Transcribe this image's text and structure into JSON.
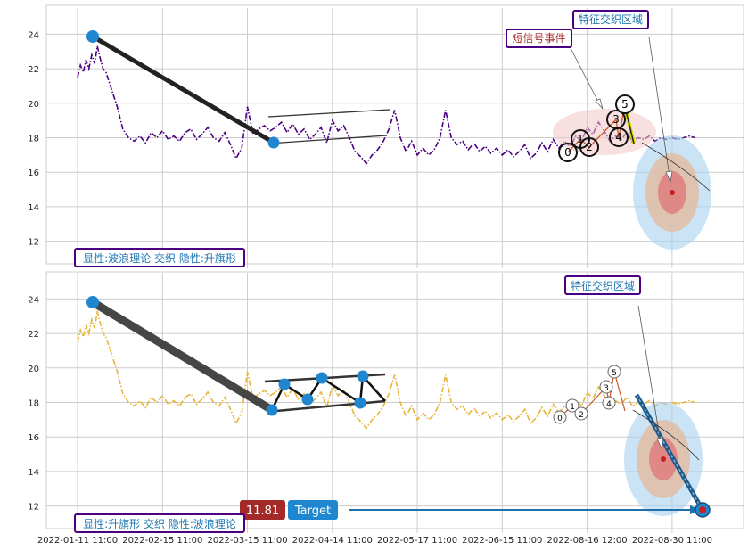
{
  "chart_data": [
    {
      "type": "line",
      "panel": "top",
      "ylim": [
        11,
        25
      ],
      "yticks": [
        12,
        14,
        16,
        18,
        20,
        22,
        24
      ],
      "series": [
        {
          "color": "#4b0082",
          "style": "dash-dot",
          "x": [
            0,
            1,
            2,
            3,
            4,
            5,
            6,
            7,
            8,
            9,
            10,
            12,
            14,
            16,
            18,
            20,
            22,
            24,
            26,
            28,
            30,
            32,
            34,
            36,
            38,
            40,
            42,
            44,
            46,
            48,
            50,
            52,
            54,
            56,
            58,
            60,
            62,
            64,
            66,
            68,
            70,
            72,
            74,
            76,
            78,
            80,
            82,
            84,
            86,
            88,
            90,
            92,
            94,
            96,
            98,
            100,
            102,
            104,
            106,
            108,
            110,
            112,
            114,
            116,
            118,
            120,
            122,
            124,
            126,
            128,
            130,
            132,
            134,
            136,
            138,
            140,
            142,
            144,
            146,
            148,
            150,
            152,
            154,
            156,
            158,
            160,
            162,
            164,
            166,
            168,
            170,
            172,
            174,
            176,
            178,
            180,
            182,
            184,
            186,
            188,
            190,
            192,
            194,
            196,
            198,
            200,
            202,
            204,
            206,
            208,
            210,
            212,
            214,
            216,
            218
          ],
          "y": [
            21.5,
            22.2,
            21.8,
            22.5,
            22.0,
            22.8,
            22.3,
            23.3,
            22.6,
            22.0,
            21.8,
            20.8,
            19.8,
            18.5,
            18.0,
            17.8,
            18.1,
            17.7,
            18.3,
            18.0,
            18.4,
            17.9,
            18.1,
            17.8,
            18.3,
            18.5,
            17.9,
            18.2,
            18.6,
            18.0,
            17.8,
            18.3,
            17.6,
            16.8,
            17.4,
            19.8,
            18.2,
            18.5,
            18.7,
            18.4,
            18.6,
            18.9,
            18.3,
            18.8,
            18.2,
            18.5,
            17.9,
            18.2,
            18.6,
            17.7,
            19.0,
            18.4,
            18.7,
            18.0,
            17.2,
            16.9,
            16.5,
            17.0,
            17.3,
            17.8,
            18.5,
            19.6,
            18.0,
            17.2,
            17.8,
            17.0,
            17.4,
            17.0,
            17.3,
            18.0,
            19.6,
            18.0,
            17.6,
            17.8,
            17.3,
            17.7,
            17.2,
            17.5,
            17.1,
            17.4,
            17.0,
            17.3,
            16.9,
            17.2,
            17.6,
            16.8,
            17.1,
            17.7,
            17.2,
            17.9,
            17.4,
            17.8,
            17.5,
            18.1,
            17.8,
            18.6,
            18.2,
            18.9,
            18.4,
            17.8,
            18.1,
            17.9,
            18.3,
            17.8,
            18.0,
            17.9,
            18.1,
            17.8,
            18.0,
            17.9,
            18.0,
            17.9,
            18.0,
            18.1,
            18.0
          ]
        }
      ]
    },
    {
      "type": "line",
      "panel": "bottom",
      "ylim": [
        11,
        25
      ],
      "yticks": [
        12,
        14,
        16,
        18,
        20,
        22,
        24
      ],
      "series": [
        {
          "color": "#e8b53a",
          "style": "dash-dot",
          "x": [
            0,
            1,
            2,
            3,
            4,
            5,
            6,
            7,
            8,
            9,
            10,
            12,
            14,
            16,
            18,
            20,
            22,
            24,
            26,
            28,
            30,
            32,
            34,
            36,
            38,
            40,
            42,
            44,
            46,
            48,
            50,
            52,
            54,
            56,
            58,
            60,
            62,
            64,
            66,
            68,
            70,
            72,
            74,
            76,
            78,
            80,
            82,
            84,
            86,
            88,
            90,
            92,
            94,
            96,
            98,
            100,
            102,
            104,
            106,
            108,
            110,
            112,
            114,
            116,
            118,
            120,
            122,
            124,
            126,
            128,
            130,
            132,
            134,
            136,
            138,
            140,
            142,
            144,
            146,
            148,
            150,
            152,
            154,
            156,
            158,
            160,
            162,
            164,
            166,
            168,
            170,
            172,
            174,
            176,
            178,
            180,
            182,
            184,
            186,
            188,
            190,
            192,
            194,
            196,
            198,
            200,
            202,
            204,
            206,
            208,
            210,
            212,
            214,
            216,
            218
          ],
          "y": [
            21.5,
            22.2,
            21.8,
            22.5,
            22.0,
            22.8,
            22.3,
            23.3,
            22.6,
            22.0,
            21.8,
            20.8,
            19.8,
            18.5,
            18.0,
            17.8,
            18.1,
            17.7,
            18.3,
            18.0,
            18.4,
            17.9,
            18.1,
            17.8,
            18.3,
            18.5,
            17.9,
            18.2,
            18.6,
            18.0,
            17.8,
            18.3,
            17.6,
            16.8,
            17.4,
            19.8,
            18.2,
            18.5,
            18.7,
            18.4,
            18.6,
            18.9,
            18.3,
            18.8,
            18.2,
            18.5,
            17.9,
            18.2,
            18.6,
            17.7,
            19.0,
            18.4,
            18.7,
            18.0,
            17.2,
            16.9,
            16.5,
            17.0,
            17.3,
            17.8,
            18.5,
            19.6,
            18.0,
            17.2,
            17.8,
            17.0,
            17.4,
            17.0,
            17.3,
            18.0,
            19.6,
            18.0,
            17.6,
            17.8,
            17.3,
            17.7,
            17.2,
            17.5,
            17.1,
            17.4,
            17.0,
            17.3,
            16.9,
            17.2,
            17.6,
            16.8,
            17.1,
            17.7,
            17.2,
            17.9,
            17.4,
            17.8,
            17.5,
            18.1,
            17.8,
            18.6,
            18.2,
            18.9,
            18.4,
            17.8,
            18.1,
            17.9,
            18.3,
            17.8,
            18.0,
            17.9,
            18.1,
            17.8,
            18.0,
            17.9,
            18.0,
            17.9,
            18.0,
            18.1,
            18.0
          ]
        }
      ]
    }
  ],
  "x_axis": {
    "ticks": [
      {
        "t": 0,
        "label": "2022-01-11 11:00"
      },
      {
        "t": 30,
        "label": "2022-02-15 11:00"
      },
      {
        "t": 60,
        "label": "2022-03-15 11:00"
      },
      {
        "t": 90,
        "label": "2022-04-14 11:00"
      },
      {
        "t": 120,
        "label": "2022-05-17 11:00"
      },
      {
        "t": 150,
        "label": "2022-06-15 11:00"
      },
      {
        "t": 180,
        "label": "2022-08-16 12:00"
      },
      {
        "t": 210,
        "label": "2022-08-30 11:00"
      }
    ]
  },
  "top_panel": {
    "pattern_box": "显性:波浪理论 交织 隐性:升旗形",
    "signal_box": "短信号事件",
    "zone_box": "特征交织区域",
    "wave_labels": [
      "0",
      "1",
      "2",
      "3",
      "4",
      "5"
    ]
  },
  "bottom_panel": {
    "pattern_box": "显性:升旗形 交织 隐性:波浪理论",
    "zone_box": "特征交织区域",
    "price_tag": "11.81",
    "target_label": "Target",
    "wave_labels": [
      "0",
      "1",
      "2",
      "3",
      "4",
      "5"
    ]
  },
  "colors": {
    "box_border": "#4b0082",
    "box_text": "#1f77b4",
    "signal_text": "#a83232",
    "marker": "#1f87d0",
    "price_tag_bg": "#a42a2a",
    "target_bg": "#1f87d0"
  }
}
